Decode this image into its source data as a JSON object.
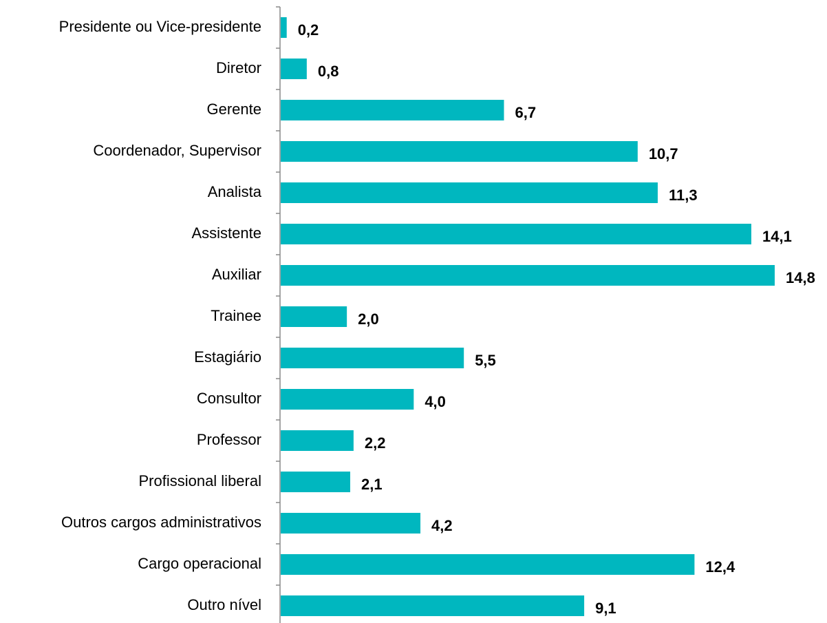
{
  "chart_data": {
    "type": "bar",
    "orientation": "horizontal",
    "categories": [
      "Presidente ou Vice-presidente",
      "Diretor",
      "Gerente",
      "Coordenador, Supervisor",
      "Analista",
      "Assistente",
      "Auxiliar",
      "Trainee",
      "Estagiário",
      "Consultor",
      "Professor",
      "Profissional liberal",
      "Outros cargos administrativos",
      "Cargo operacional",
      "Outro nível"
    ],
    "values": [
      0.2,
      0.8,
      6.7,
      10.7,
      11.3,
      14.1,
      14.8,
      2.0,
      5.5,
      4.0,
      2.2,
      2.1,
      4.2,
      12.4,
      9.1
    ],
    "value_labels": [
      "0,2",
      "0,8",
      "6,7",
      "10,7",
      "11,3",
      "14,1",
      "14,8",
      "2,0",
      "5,5",
      "4,0",
      "2,2",
      "2,1",
      "4,2",
      "12,4",
      "9,1"
    ],
    "color": "#00b7bf"
  }
}
